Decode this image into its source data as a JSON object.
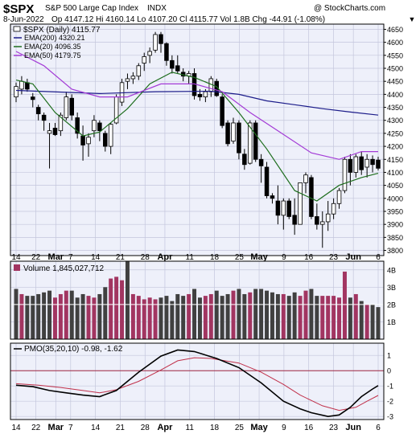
{
  "header": {
    "symbol": "$SPX",
    "name": "S&P 500 Large Cap Index",
    "exchange": "INDX",
    "watermark": "@ StockCharts.com",
    "date": "8-Jun-2022",
    "quote": "Op 4147.12 Hi 4160.14 Lo 4107.20 Cl 4115.77 Vol 1.8B Chg -44.91 (-1.08%)",
    "down_arrow": "▼"
  },
  "legend": {
    "price": "$SPX (Daily) 4115.77",
    "ema200": "EMA(200) 4320.21",
    "ema20": "EMA(20) 4096.35",
    "ema50": "EMA(50) 4179.75",
    "volume": "Volume 1,845,027,712",
    "pmo": "PMO(35,20,10) -0.98, -1.62"
  },
  "colors": {
    "panel_bg": "#eef0fa",
    "grid": "#c4c6dc",
    "up": "#ffffff",
    "down": "#000000",
    "ema200": "#1c1c8a",
    "ema20": "#1e6e1e",
    "ema50": "#a33bd6",
    "vol_up": "#a23561",
    "vol_down": "#404040",
    "pmo": "#000000",
    "pmo_signal": "#c0304a",
    "zero_line": "#9e2540",
    "arrow": "#cc2222"
  },
  "x_labels": [
    "14",
    "22",
    "Mar",
    "7",
    "14",
    "21",
    "28",
    "Apr",
    "11",
    "18",
    "25",
    "May",
    "9",
    "16",
    "23",
    "Jun",
    "6"
  ],
  "chart_data": [
    {
      "type": "candlestick",
      "title": "$SPX (Daily) 4115.77",
      "y_ticks": [
        3800,
        3850,
        3900,
        3950,
        4000,
        4050,
        4100,
        4150,
        4200,
        4250,
        4300,
        4350,
        4400,
        4450,
        4500,
        4550,
        4600,
        4650
      ],
      "ylim": [
        3780,
        4670
      ],
      "grid": true,
      "legend_position": "top-left",
      "ohlc": [
        [
          4390,
          4445,
          4370,
          4430
        ],
        [
          4420,
          4470,
          4400,
          4450
        ],
        [
          4445,
          4460,
          4410,
          4420
        ],
        [
          4390,
          4405,
          4350,
          4380
        ],
        [
          4350,
          4360,
          4300,
          4325
        ],
        [
          4320,
          4330,
          4260,
          4300
        ],
        [
          4250,
          4290,
          4115,
          4260
        ],
        [
          4270,
          4290,
          4240,
          4245
        ],
        [
          4260,
          4330,
          4240,
          4320
        ],
        [
          4310,
          4410,
          4300,
          4390
        ],
        [
          4385,
          4400,
          4300,
          4320
        ],
        [
          4310,
          4330,
          4230,
          4250
        ],
        [
          4240,
          4280,
          4145,
          4205
        ],
        [
          4210,
          4250,
          4160,
          4235
        ],
        [
          4260,
          4320,
          4235,
          4300
        ],
        [
          4290,
          4300,
          4220,
          4260
        ],
        [
          4250,
          4260,
          4180,
          4200
        ],
        [
          4200,
          4290,
          4170,
          4285
        ],
        [
          4290,
          4400,
          4285,
          4390
        ],
        [
          4370,
          4460,
          4355,
          4445
        ],
        [
          4450,
          4480,
          4420,
          4460
        ],
        [
          4460,
          4485,
          4440,
          4470
        ],
        [
          4470,
          4520,
          4455,
          4510
        ],
        [
          4520,
          4560,
          4490,
          4545
        ],
        [
          4550,
          4580,
          4520,
          4565
        ],
        [
          4570,
          4640,
          4560,
          4630
        ],
        [
          4630,
          4640,
          4560,
          4595
        ],
        [
          4595,
          4600,
          4510,
          4530
        ],
        [
          4530,
          4550,
          4480,
          4500
        ],
        [
          4510,
          4550,
          4480,
          4490
        ],
        [
          4485,
          4500,
          4450,
          4470
        ],
        [
          4470,
          4490,
          4440,
          4480
        ],
        [
          4480,
          4500,
          4380,
          4395
        ],
        [
          4400,
          4420,
          4375,
          4390
        ],
        [
          4390,
          4420,
          4370,
          4410
        ],
        [
          4410,
          4470,
          4390,
          4460
        ],
        [
          4450,
          4460,
          4390,
          4395
        ],
        [
          4390,
          4400,
          4270,
          4280
        ],
        [
          4290,
          4300,
          4200,
          4210
        ],
        [
          4220,
          4310,
          4210,
          4290
        ],
        [
          4290,
          4300,
          4150,
          4175
        ],
        [
          4170,
          4190,
          4110,
          4130
        ],
        [
          4135,
          4300,
          4130,
          4290
        ],
        [
          4290,
          4300,
          4140,
          4150
        ],
        [
          4150,
          4170,
          4060,
          4125
        ],
        [
          4120,
          4140,
          4000,
          4010
        ],
        [
          4010,
          4020,
          3980,
          4000
        ],
        [
          3990,
          4050,
          3900,
          3935
        ],
        [
          3935,
          4000,
          3880,
          3990
        ],
        [
          3990,
          4000,
          3920,
          3930
        ],
        [
          3935,
          4000,
          3860,
          3900
        ],
        [
          3900,
          4060,
          3900,
          4060
        ],
        [
          4060,
          4100,
          4020,
          4090
        ],
        [
          4080,
          4090,
          3920,
          3930
        ],
        [
          3930,
          3980,
          3880,
          3900
        ],
        [
          3900,
          3950,
          3810,
          3910
        ],
        [
          3910,
          3990,
          3875,
          3940
        ],
        [
          3940,
          4000,
          3920,
          3980
        ],
        [
          3980,
          4040,
          3960,
          4030
        ],
        [
          4030,
          4160,
          4020,
          4150
        ],
        [
          4150,
          4170,
          4050,
          4100
        ],
        [
          4100,
          4170,
          4080,
          4160
        ],
        [
          4160,
          4180,
          4090,
          4110
        ],
        [
          4120,
          4170,
          4080,
          4150
        ],
        [
          4150,
          4165,
          4100,
          4130
        ],
        [
          4147.12,
          4160.14,
          4107.2,
          4115.77
        ]
      ],
      "series": [
        {
          "name": "EMA(200)",
          "points": [
            [
              0,
              4415
            ],
            [
              15,
              4403
            ],
            [
              25,
              4410
            ],
            [
              35,
              4412
            ],
            [
              40,
              4400
            ],
            [
              45,
              4375
            ],
            [
              50,
              4360
            ],
            [
              55,
              4345
            ],
            [
              60,
              4332
            ],
            [
              65,
              4320.21
            ]
          ]
        },
        {
          "name": "EMA(20)",
          "points": [
            [
              0,
              4455
            ],
            [
              3,
              4440
            ],
            [
              7,
              4330
            ],
            [
              12,
              4240
            ],
            [
              15,
              4255
            ],
            [
              20,
              4345
            ],
            [
              24,
              4440
            ],
            [
              28,
              4485
            ],
            [
              32,
              4465
            ],
            [
              36,
              4430
            ],
            [
              40,
              4330
            ],
            [
              45,
              4190
            ],
            [
              50,
              4030
            ],
            [
              54,
              3990
            ],
            [
              58,
              4050
            ],
            [
              62,
              4080
            ],
            [
              65,
              4096.35
            ]
          ]
        },
        {
          "name": "EMA(50)",
          "points": [
            [
              0,
              4565
            ],
            [
              5,
              4510
            ],
            [
              10,
              4420
            ],
            [
              15,
              4390
            ],
            [
              20,
              4390
            ],
            [
              26,
              4440
            ],
            [
              32,
              4440
            ],
            [
              37,
              4410
            ],
            [
              42,
              4330
            ],
            [
              47,
              4260
            ],
            [
              53,
              4175
            ],
            [
              58,
              4150
            ],
            [
              62,
              4180
            ],
            [
              65,
              4179.75
            ]
          ]
        }
      ]
    },
    {
      "type": "bar",
      "title": "Volume 1,845,027,712",
      "y_ticks": [
        "4B",
        "3B",
        "2B",
        "1B"
      ],
      "ylim": [
        0,
        4.5
      ],
      "values": [
        2.9,
        2.6,
        2.5,
        2.5,
        2.6,
        2.7,
        2.8,
        2.4,
        2.6,
        2.8,
        2.8,
        2.4,
        2.6,
        2.5,
        2.4,
        2.6,
        3.0,
        3.5,
        3.6,
        3.4,
        4.5,
        2.6,
        2.5,
        2.3,
        2.4,
        2.3,
        2.4,
        2.5,
        2.2,
        2.6,
        2.5,
        2.6,
        2.9,
        2.4,
        2.5,
        2.6,
        2.8,
        2.5,
        2.6,
        2.8,
        2.9,
        2.6,
        2.7,
        2.9,
        2.9,
        2.8,
        2.7,
        2.6,
        2.6,
        2.5,
        2.7,
        2.5,
        2.8,
        2.9,
        2.5,
        2.5,
        2.5,
        2.5,
        2.4,
        3.9,
        2.4,
        2.6,
        2.2,
        2.0,
        2.0,
        1.85
      ],
      "up": [
        0,
        1,
        0,
        0,
        0,
        0,
        0,
        1,
        1,
        1,
        0,
        0,
        0,
        1,
        1,
        0,
        0,
        1,
        1,
        1,
        0,
        1,
        1,
        1,
        1,
        1,
        0,
        0,
        0,
        0,
        0,
        1,
        0,
        0,
        1,
        1,
        0,
        0,
        0,
        1,
        0,
        0,
        1,
        0,
        0,
        0,
        0,
        0,
        1,
        0,
        0,
        1,
        1,
        0,
        0,
        1,
        1,
        1,
        1,
        1,
        0,
        1,
        0,
        1,
        0,
        0
      ]
    },
    {
      "type": "line",
      "title": "PMO(35,20,10) -0.98, -1.62",
      "y_ticks": [
        1,
        0,
        -1,
        -2,
        -3
      ],
      "ylim": [
        -3.2,
        1.8
      ],
      "series": [
        {
          "name": "PMO",
          "points": [
            [
              0,
              -0.95
            ],
            [
              3,
              -1.05
            ],
            [
              6,
              -1.3
            ],
            [
              9,
              -1.45
            ],
            [
              12,
              -1.6
            ],
            [
              15,
              -1.7
            ],
            [
              18,
              -1.3
            ],
            [
              22,
              -0.1
            ],
            [
              26,
              0.95
            ],
            [
              29,
              1.35
            ],
            [
              32,
              1.25
            ],
            [
              36,
              0.8
            ],
            [
              40,
              0.2
            ],
            [
              44,
              -0.8
            ],
            [
              48,
              -2.0
            ],
            [
              51,
              -2.5
            ],
            [
              53,
              -2.75
            ],
            [
              56,
              -3.0
            ],
            [
              58,
              -2.9
            ],
            [
              60,
              -2.4
            ],
            [
              62,
              -1.7
            ],
            [
              64,
              -1.2
            ],
            [
              65,
              -0.98
            ]
          ]
        },
        {
          "name": "Signal",
          "points": [
            [
              0,
              -0.85
            ],
            [
              4,
              -0.95
            ],
            [
              8,
              -1.1
            ],
            [
              12,
              -1.3
            ],
            [
              15,
              -1.45
            ],
            [
              18,
              -1.25
            ],
            [
              22,
              -0.7
            ],
            [
              26,
              0.05
            ],
            [
              29,
              0.65
            ],
            [
              32,
              0.85
            ],
            [
              35,
              0.8
            ],
            [
              40,
              0.5
            ],
            [
              44,
              -0.1
            ],
            [
              48,
              -0.9
            ],
            [
              51,
              -1.6
            ],
            [
              55,
              -2.3
            ],
            [
              58,
              -2.6
            ],
            [
              61,
              -2.4
            ],
            [
              63,
              -2.0
            ],
            [
              65,
              -1.62
            ]
          ]
        }
      ]
    }
  ]
}
